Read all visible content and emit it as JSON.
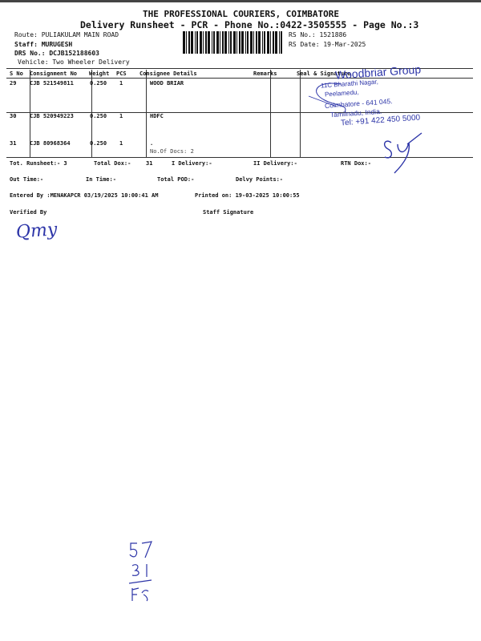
{
  "header": {
    "company": "THE PROFESSIONAL COURIERS, COIMBATORE",
    "subtitle": "Delivery Runsheet - PCR - Phone No.:0422-3505555 - Page No.:3",
    "route": "Route: PULIAKULAM MAIN ROAD",
    "staff": "Staff: MURUGESH",
    "drs_no": "DRS No.: DCJB152188603",
    "vehicle": "Vehicle: Two Wheeler Delivery",
    "rs_no": "RS No.: 1521886",
    "rs_date": "RS Date: 19-Mar-2025"
  },
  "table": {
    "columns": [
      "S No",
      "Consignment No",
      "Weight",
      "PCS",
      "Consignee Details",
      "Remarks",
      "Seal & Signature"
    ],
    "rows": [
      {
        "sno": "29",
        "consignment": "CJB 521549811",
        "weight": "0.250",
        "pcs": "1",
        "consignee": "WOOD BRIAR",
        "note": ""
      },
      {
        "sno": "30",
        "consignment": "CJB 520949223",
        "weight": "0.250",
        "pcs": "1",
        "consignee": "HDFC",
        "note": ""
      },
      {
        "sno": "31",
        "consignment": "CJB 80968364",
        "weight": "0.250",
        "pcs": "1",
        "consignee": ".",
        "note": "No.Of Docs: 2"
      }
    ]
  },
  "summary": {
    "tot_runsheet": "Tot. Runsheet:- 3",
    "total_dox": "Total Dox:-",
    "total_dox_value": "31",
    "i_delivery": "I Delivery:-",
    "ii_delivery": "II Delivery:-",
    "rtn_dox": "RTN Dox:-",
    "out_time": "Out Time:-",
    "in_time": "In Time:-",
    "total_pod": "Total POD:-",
    "delvy_points": "Delvy Points:-",
    "entered_by": "Entered By :MENAKAPCR 03/19/2025 10:00:41 AM",
    "printed_on": "Printed on: 19-03-2025 10:00:55",
    "verified_by": "Verified By",
    "staff_signature": "Staff Signature"
  },
  "stamp": {
    "name": "Woodbriar Group",
    "line1": "11C Bharathi Nagar,",
    "line2": "Peelamedu,",
    "line3": "Coimbatore - 641 045.",
    "line4": "Tamilnadu, India.",
    "tel": "Tel: +91 422 450 5000",
    "color": "#2d35a8"
  },
  "handwriting": {
    "verified_initials": "Qmy",
    "seal_initials": "SY",
    "note_line1": "57",
    "note_line2": "31",
    "note_line3": "Fr"
  }
}
